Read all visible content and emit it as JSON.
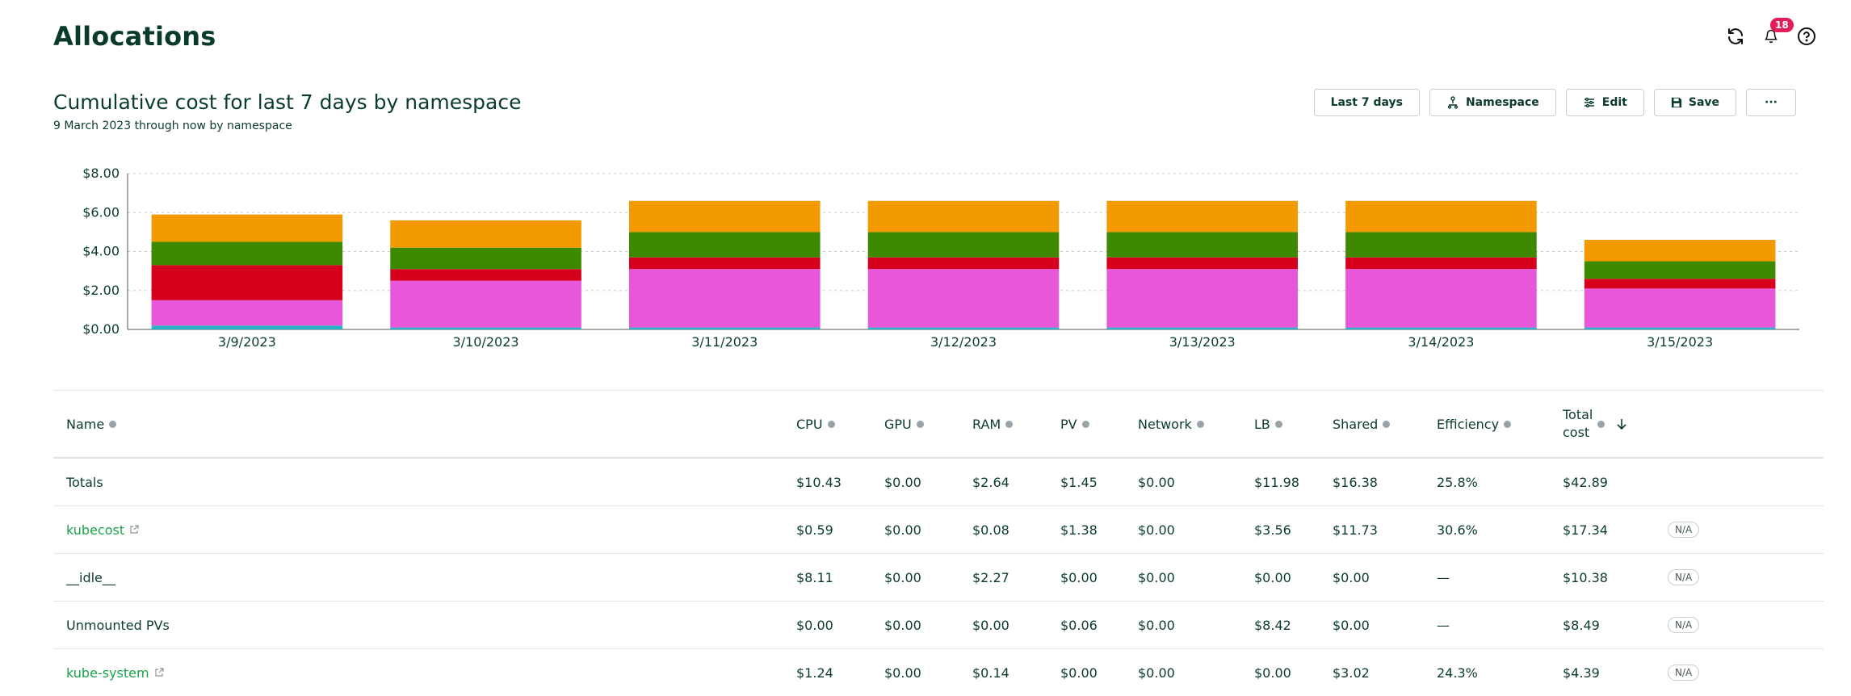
{
  "page": {
    "title": "Allocations"
  },
  "notifications": {
    "count": "18"
  },
  "report": {
    "title": "Cumulative cost for last 7 days by namespace",
    "subtitle": "9 March 2023 through now by namespace"
  },
  "toolbar": {
    "range_label": "Last 7 days",
    "aggregate_label": "Namespace",
    "edit_label": "Edit",
    "save_label": "Save",
    "more_label": "···"
  },
  "chart_data": {
    "type": "bar",
    "stacked": true,
    "categories": [
      "3/9/2023",
      "3/10/2023",
      "3/11/2023",
      "3/12/2023",
      "3/13/2023",
      "3/14/2023",
      "3/15/2023"
    ],
    "ylim": [
      0,
      8
    ],
    "yticks": [
      "$0.00",
      "$2.00",
      "$4.00",
      "$6.00",
      "$8.00"
    ],
    "grid": true,
    "legend": "none",
    "series": [
      {
        "color": "#2ab3c7",
        "values": [
          0.2,
          0.1,
          0.1,
          0.1,
          0.1,
          0.1,
          0.1
        ]
      },
      {
        "color": "#e857d9",
        "values": [
          1.3,
          2.4,
          3.0,
          3.0,
          3.0,
          3.0,
          2.0
        ]
      },
      {
        "color": "#d6001c",
        "values": [
          1.8,
          0.6,
          0.6,
          0.6,
          0.6,
          0.6,
          0.5
        ]
      },
      {
        "color": "#3d8a00",
        "values": [
          1.2,
          1.1,
          1.3,
          1.3,
          1.3,
          1.3,
          0.9
        ]
      },
      {
        "color": "#f29a00",
        "values": [
          1.4,
          1.4,
          1.6,
          1.6,
          1.6,
          1.6,
          1.1
        ]
      }
    ]
  },
  "table": {
    "headers": {
      "name": "Name",
      "cpu": "CPU",
      "gpu": "GPU",
      "ram": "RAM",
      "pv": "PV",
      "network": "Network",
      "lb": "LB",
      "shared": "Shared",
      "efficiency": "Efficiency",
      "total_line1": "Total",
      "total_line2": "cost"
    },
    "totals": {
      "name": "Totals",
      "cpu": "$10.43",
      "gpu": "$0.00",
      "ram": "$2.64",
      "pv": "$1.45",
      "network": "$0.00",
      "lb": "$11.98",
      "shared": "$16.38",
      "efficiency": "25.8%",
      "total": "$42.89"
    },
    "rows": [
      {
        "name": "kubecost",
        "cpu": "$0.59",
        "gpu": "$0.00",
        "ram": "$0.08",
        "pv": "$1.38",
        "network": "$0.00",
        "lb": "$3.56",
        "shared": "$11.73",
        "efficiency": "30.6%",
        "total": "$17.34",
        "badge": "N/A"
      },
      {
        "name": "__idle__",
        "cpu": "$8.11",
        "gpu": "$0.00",
        "ram": "$2.27",
        "pv": "$0.00",
        "network": "$0.00",
        "lb": "$0.00",
        "shared": "$0.00",
        "efficiency": "—",
        "total": "$10.38",
        "badge": "N/A"
      },
      {
        "name": "Unmounted PVs",
        "cpu": "$0.00",
        "gpu": "$0.00",
        "ram": "$0.00",
        "pv": "$0.06",
        "network": "$0.00",
        "lb": "$8.42",
        "shared": "$0.00",
        "efficiency": "—",
        "total": "$8.49",
        "badge": "N/A"
      },
      {
        "name": "kube-system",
        "cpu": "$1.24",
        "gpu": "$0.00",
        "ram": "$0.14",
        "pv": "$0.00",
        "network": "$0.00",
        "lb": "$0.00",
        "shared": "$3.02",
        "efficiency": "24.3%",
        "total": "$4.39",
        "badge": "N/A"
      }
    ]
  }
}
